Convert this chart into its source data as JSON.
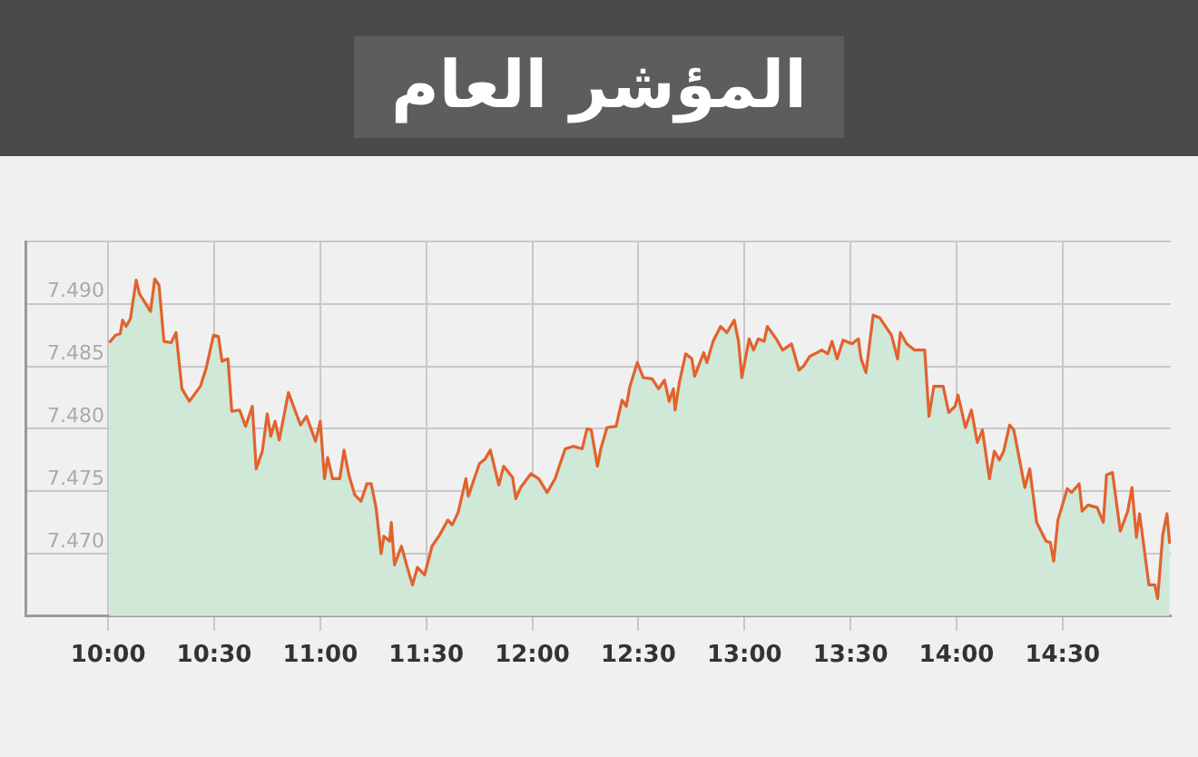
{
  "chart_data": {
    "type": "area",
    "title": "المؤشر العام",
    "xlim": [
      9.61,
      15.01
    ],
    "xticks": [
      {
        "value": 10,
        "label": "10:00"
      },
      {
        "value": 10.5,
        "label": "10:30"
      },
      {
        "value": 11,
        "label": "11:00"
      },
      {
        "value": 11.5,
        "label": "11:30"
      },
      {
        "value": 12,
        "label": "12:00"
      },
      {
        "value": 12.5,
        "label": "12:30"
      },
      {
        "value": 13,
        "label": "13:00"
      },
      {
        "value": 13.5,
        "label": "13:30"
      },
      {
        "value": 14,
        "label": "14:00"
      },
      {
        "value": 14.5,
        "label": "14:30"
      }
    ],
    "ylim": [
      7465,
      7495
    ],
    "yticks": [
      {
        "value": 7470,
        "label": "7.470"
      },
      {
        "value": 7475,
        "label": "7.475"
      },
      {
        "value": 7480,
        "label": "7.480"
      },
      {
        "value": 7485,
        "label": "7.485"
      },
      {
        "value": 7490,
        "label": "7.490"
      },
      {
        "value": 7495,
        "label": null
      }
    ],
    "grid": true,
    "legend": false,
    "marker": "none",
    "series": [
      {
        "color": "#e2622e",
        "x": [
          10.005,
          10.035,
          10.057,
          10.068,
          10.085,
          10.105,
          10.132,
          10.148,
          10.2,
          10.22,
          10.24,
          10.263,
          10.297,
          10.32,
          10.348,
          10.383,
          10.435,
          10.463,
          10.497,
          10.52,
          10.537,
          10.565,
          10.583,
          10.62,
          10.648,
          10.68,
          10.698,
          10.727,
          10.75,
          10.767,
          10.787,
          10.807,
          10.85,
          10.907,
          10.935,
          10.978,
          11.0,
          11.02,
          11.035,
          11.058,
          11.092,
          11.112,
          11.135,
          11.163,
          11.192,
          11.22,
          11.24,
          11.263,
          11.287,
          11.3,
          11.327,
          11.335,
          11.35,
          11.383,
          11.407,
          11.435,
          11.458,
          11.492,
          11.527,
          11.563,
          11.602,
          11.622,
          11.65,
          11.687,
          11.698,
          11.75,
          11.778,
          11.802,
          11.822,
          11.842,
          11.865,
          11.907,
          11.922,
          11.945,
          11.993,
          12.03,
          12.07,
          12.107,
          12.155,
          12.193,
          12.235,
          12.258,
          12.278,
          12.307,
          12.323,
          12.352,
          12.395,
          12.423,
          12.443,
          12.46,
          12.495,
          12.523,
          12.565,
          12.595,
          12.623,
          12.645,
          12.665,
          12.673,
          12.693,
          12.723,
          12.752,
          12.765,
          12.808,
          12.823,
          12.852,
          12.888,
          12.917,
          12.952,
          12.972,
          12.988,
          13.022,
          13.043,
          13.065,
          13.093,
          13.108,
          13.15,
          13.18,
          13.222,
          13.257,
          13.278,
          13.308,
          13.365,
          13.393,
          13.413,
          13.437,
          13.465,
          13.507,
          13.537,
          13.55,
          13.573,
          13.607,
          13.637,
          13.665,
          13.693,
          13.722,
          13.735,
          13.765,
          13.802,
          13.85,
          13.87,
          13.893,
          13.937,
          13.963,
          13.993,
          14.007,
          14.042,
          14.07,
          14.098,
          14.122,
          14.155,
          14.178,
          14.202,
          14.222,
          14.25,
          14.27,
          14.322,
          14.345,
          14.378,
          14.422,
          14.442,
          14.458,
          14.478,
          14.522,
          14.543,
          14.578,
          14.592,
          14.62,
          14.663,
          14.692,
          14.707,
          14.735,
          14.772,
          14.807,
          14.827,
          14.848,
          14.863,
          14.907,
          14.935,
          14.948,
          14.972,
          14.992,
          15.005
        ],
        "values": [
          7486.9,
          7487.5,
          7487.6,
          7488.7,
          7488.2,
          7488.8,
          7491.9,
          7490.8,
          7489.4,
          7492.0,
          7491.5,
          7487.0,
          7486.9,
          7487.7,
          7483.2,
          7482.2,
          7483.4,
          7484.9,
          7487.5,
          7487.4,
          7485.4,
          7485.6,
          7481.4,
          7481.5,
          7480.2,
          7481.8,
          7476.8,
          7478.2,
          7481.2,
          7479.4,
          7480.6,
          7479.1,
          7482.9,
          7480.3,
          7481.0,
          7479.0,
          7480.6,
          7476.0,
          7477.7,
          7476.0,
          7476.0,
          7478.3,
          7476.3,
          7474.7,
          7474.2,
          7475.6,
          7475.6,
          7473.7,
          7470.0,
          7471.4,
          7471.0,
          7472.5,
          7469.1,
          7470.6,
          7469.1,
          7467.5,
          7468.9,
          7468.3,
          7470.6,
          7471.5,
          7472.7,
          7472.3,
          7473.3,
          7476.0,
          7474.6,
          7477.2,
          7477.6,
          7478.3,
          7476.9,
          7475.5,
          7477.0,
          7476.1,
          7474.4,
          7475.3,
          7476.4,
          7476.0,
          7474.9,
          7476.0,
          7478.4,
          7478.6,
          7478.4,
          7480.0,
          7479.9,
          7477.0,
          7478.4,
          7480.1,
          7480.2,
          7482.3,
          7481.8,
          7483.4,
          7485.3,
          7484.1,
          7484.0,
          7483.2,
          7483.9,
          7482.2,
          7483.2,
          7481.5,
          7483.7,
          7486.0,
          7485.6,
          7484.2,
          7486.1,
          7485.3,
          7487.0,
          7488.2,
          7487.7,
          7488.7,
          7487.0,
          7484.1,
          7487.2,
          7486.3,
          7487.2,
          7487.0,
          7488.2,
          7487.2,
          7486.3,
          7486.8,
          7484.7,
          7485.0,
          7485.8,
          7486.3,
          7486.0,
          7487.0,
          7485.6,
          7487.1,
          7486.8,
          7487.2,
          7485.6,
          7484.5,
          7489.1,
          7488.9,
          7488.2,
          7487.5,
          7485.6,
          7487.7,
          7486.8,
          7486.3,
          7486.3,
          7481.0,
          7483.4,
          7483.4,
          7481.3,
          7481.8,
          7482.7,
          7480.1,
          7481.5,
          7478.9,
          7479.9,
          7476.0,
          7478.2,
          7477.5,
          7478.2,
          7480.3,
          7479.9,
          7475.3,
          7476.8,
          7472.5,
          7471.0,
          7470.9,
          7469.4,
          7472.7,
          7475.2,
          7474.9,
          7475.6,
          7473.4,
          7473.9,
          7473.7,
          7472.5,
          7476.3,
          7476.5,
          7471.8,
          7473.4,
          7475.3,
          7471.3,
          7473.2,
          7467.5,
          7467.5,
          7466.4,
          7471.5,
          7473.2,
          7470.8
        ]
      }
    ]
  }
}
